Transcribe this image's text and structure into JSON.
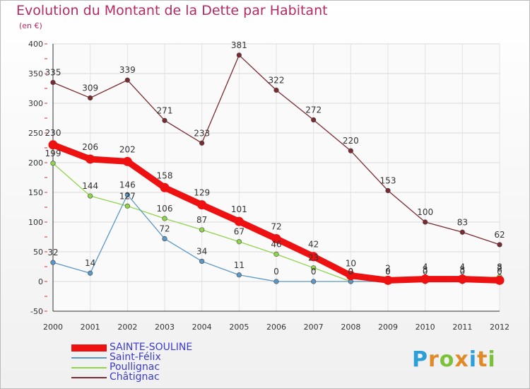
{
  "page": {
    "title": "Evolution du Montant de la Dette par Habitant",
    "subtitle": "(en €)",
    "brand": {
      "letters": [
        "P",
        "r",
        "o",
        "x",
        "i",
        "t",
        "i"
      ],
      "colors": [
        "#2d9fd8",
        "#e08a2a",
        "#7cc13a",
        "#e08a2a",
        "#2d9fd8",
        "#e08a2a",
        "#7cc13a"
      ]
    }
  },
  "chart_data": {
    "type": "line",
    "title": "Evolution du Montant de la Dette par Habitant",
    "subtitle": "(en €)",
    "x": [
      "2000",
      "2001",
      "2002",
      "2003",
      "2004",
      "2005",
      "2006",
      "2007",
      "2008",
      "2009",
      "2010",
      "2011",
      "2012"
    ],
    "ylim": [
      -50,
      400
    ],
    "yticks": [
      -50,
      0,
      50,
      100,
      150,
      200,
      250,
      300,
      350,
      400
    ],
    "grid": true,
    "legend_position": "bottom-left",
    "series": [
      {
        "name": "SAINTE-SOULINE",
        "color": "#ee1111",
        "values": [
          230,
          206,
          202,
          158,
          129,
          101,
          72,
          42,
          10,
          2,
          4,
          4,
          2
        ],
        "labels": [
          "230",
          "206",
          "202",
          "158",
          "129",
          "101",
          "72",
          "42",
          "10",
          "2",
          "4",
          "4",
          "2"
        ]
      },
      {
        "name": "Saint-Félix",
        "color": "#5b97c7",
        "values": [
          32,
          14,
          146,
          72,
          34,
          11,
          0,
          0,
          0,
          0,
          0,
          0,
          0
        ],
        "labels": [
          "32",
          "14",
          "146",
          "72",
          "34",
          "11",
          "0",
          "0",
          "0",
          "0",
          "0",
          "0",
          "0"
        ]
      },
      {
        "name": "Poullignac",
        "color": "#8fd44b",
        "values": [
          199,
          144,
          127,
          106,
          87,
          67,
          46,
          23,
          0,
          0,
          3,
          3,
          8
        ],
        "labels": [
          "199",
          "144",
          "127",
          "106",
          "87",
          "67",
          "46",
          "23",
          "0",
          "0",
          "3",
          "3",
          "8"
        ]
      },
      {
        "name": "Châtignac",
        "color": "#7b2a32",
        "values": [
          335,
          309,
          339,
          271,
          233,
          381,
          322,
          272,
          220,
          153,
          100,
          83,
          62
        ],
        "labels": [
          "335",
          "309",
          "339",
          "271",
          "233",
          "381",
          "322",
          "272",
          "220",
          "153",
          "100",
          "83",
          "62"
        ]
      }
    ]
  }
}
